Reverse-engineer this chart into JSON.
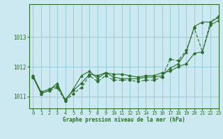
{
  "title": "Graphe pression niveau de la mer (hPa)",
  "background_color": "#cce8f0",
  "grid_color": "#99ccd8",
  "line_color": "#2d6e2d",
  "xlim": [
    -0.5,
    23
  ],
  "ylim": [
    1010.6,
    1014.1
  ],
  "yticks": [
    1011,
    1012,
    1013
  ],
  "xticks": [
    0,
    1,
    2,
    3,
    4,
    5,
    6,
    7,
    8,
    9,
    10,
    11,
    12,
    13,
    14,
    15,
    16,
    17,
    18,
    19,
    20,
    21,
    22,
    23
  ],
  "series1": {
    "x": [
      0,
      1,
      2,
      3,
      4,
      5,
      6,
      7,
      8,
      9,
      10,
      11,
      12,
      13,
      14,
      15,
      16,
      17,
      18,
      19,
      20,
      21,
      22,
      23
    ],
    "y": [
      1011.7,
      1011.15,
      1011.25,
      1011.35,
      1010.9,
      1011.2,
      1011.45,
      1011.75,
      1011.7,
      1011.8,
      1011.75,
      1011.75,
      1011.7,
      1011.65,
      1011.7,
      1011.7,
      1011.8,
      1011.85,
      1012.0,
      1012.1,
      1012.45,
      1012.5,
      1013.4,
      1013.55
    ]
  },
  "series2": {
    "x": [
      0,
      1,
      2,
      3,
      4,
      5,
      6,
      7,
      8,
      9,
      10,
      11,
      12,
      13,
      14,
      15,
      16,
      17,
      18,
      19,
      20,
      21,
      22,
      23
    ],
    "y": [
      1011.65,
      1011.1,
      1011.2,
      1011.45,
      1010.85,
      1011.25,
      1011.7,
      1011.85,
      1011.6,
      1011.8,
      1011.65,
      1011.6,
      1011.6,
      1011.6,
      1011.65,
      1011.65,
      1011.7,
      1011.95,
      1012.1,
      1012.5,
      1013.35,
      1013.5,
      1013.5,
      1013.65
    ]
  },
  "series3": {
    "x": [
      0,
      1,
      2,
      3,
      4,
      5,
      6,
      7,
      8,
      9,
      10,
      11,
      12,
      13,
      14,
      15,
      16,
      17,
      18,
      19,
      20,
      21,
      22,
      23
    ],
    "y": [
      1011.65,
      1011.1,
      1011.2,
      1011.3,
      1010.85,
      1011.1,
      1011.3,
      1011.7,
      1011.5,
      1011.7,
      1011.55,
      1011.55,
      1011.55,
      1011.5,
      1011.55,
      1011.55,
      1011.65,
      1012.25,
      1012.2,
      1012.55,
      1013.3,
      1012.5,
      1013.5,
      1013.7
    ]
  }
}
